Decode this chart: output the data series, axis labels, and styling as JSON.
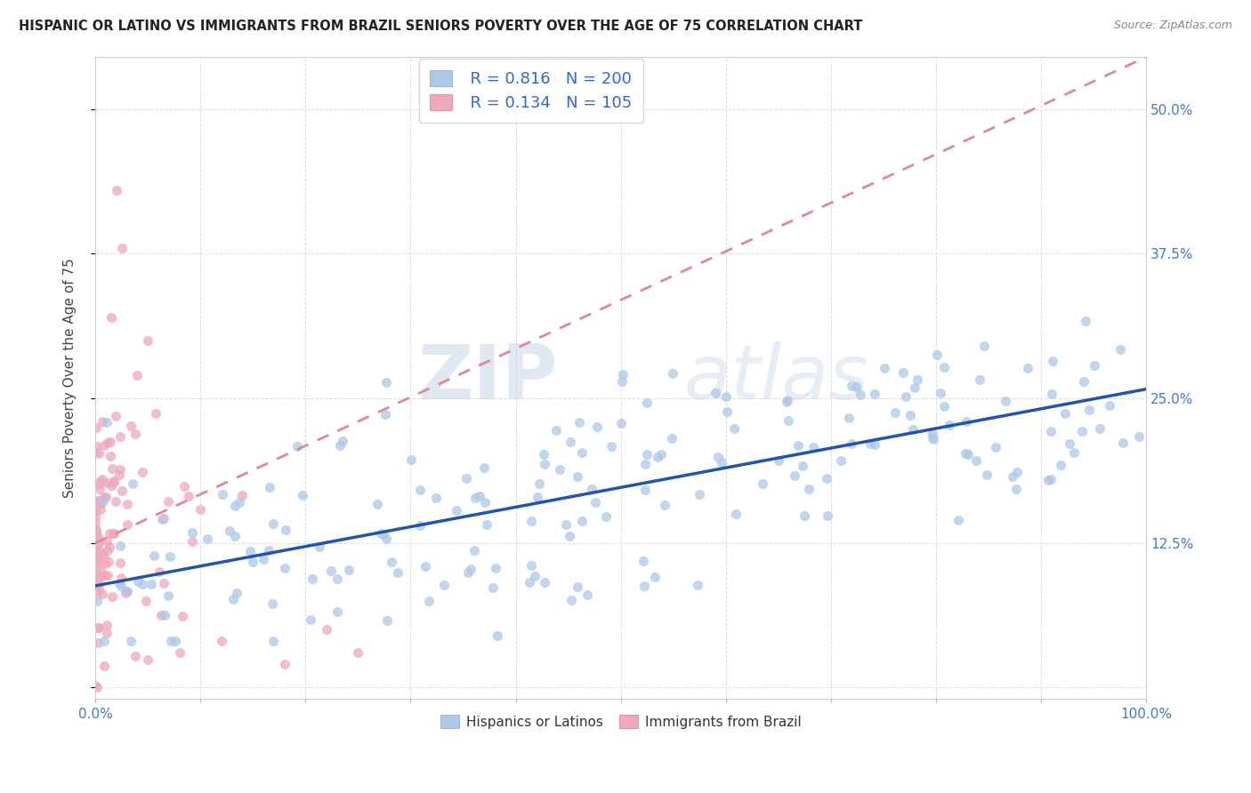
{
  "title": "HISPANIC OR LATINO VS IMMIGRANTS FROM BRAZIL SENIORS POVERTY OVER THE AGE OF 75 CORRELATION CHART",
  "source": "Source: ZipAtlas.com",
  "ylabel": "Seniors Poverty Over the Age of 75",
  "xlim": [
    0,
    1.0
  ],
  "ylim": [
    -0.01,
    0.545
  ],
  "yticks": [
    0.0,
    0.125,
    0.25,
    0.375,
    0.5
  ],
  "ytick_labels": [
    "",
    "12.5%",
    "25.0%",
    "37.5%",
    "50.0%"
  ],
  "blue_R": 0.816,
  "blue_N": 200,
  "pink_R": 0.134,
  "pink_N": 105,
  "blue_color": "#adc8e8",
  "pink_color": "#f0a8bc",
  "blue_line_color": "#2255aa",
  "pink_line_color": "#dd8899",
  "watermark_zip": "ZIP",
  "watermark_atlas": "atlas",
  "background_color": "#ffffff",
  "grid_color": "#dddddd",
  "tick_color": "#4477cc",
  "legend_color": "#3366cc"
}
